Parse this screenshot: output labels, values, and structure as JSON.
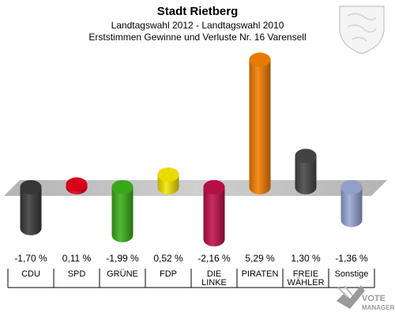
{
  "header": {
    "title": "Stadt Rietberg",
    "subtitle1": "Landtagswahl 2012 - Landtagswahl 2010",
    "subtitle2": "Erststimmen Gewinne und Verluste Nr. 16 Varensell"
  },
  "chart_data": {
    "type": "bar",
    "categories": [
      [
        "CDU"
      ],
      [
        "SPD"
      ],
      [
        "GRÜNE"
      ],
      [
        "FDP"
      ],
      [
        "DIE",
        "LINKE"
      ],
      [
        "PIRATEN"
      ],
      [
        "FREIE",
        "WÄHLER"
      ],
      [
        "Sonstige"
      ]
    ],
    "values": [
      -1.7,
      0.11,
      -1.99,
      0.52,
      -2.16,
      5.29,
      1.3,
      -1.36
    ],
    "value_labels": [
      "-1,70 %",
      "0,11 %",
      "-1,99 %",
      "0,52 %",
      "-2,16 %",
      "5,29 %",
      "1,30 %",
      "-1,36 %"
    ],
    "colors": [
      "#3a3a3a",
      "#e2001a",
      "#3cb01a",
      "#f5e600",
      "#c0104a",
      "#f57f00",
      "#464646",
      "#98a8d6"
    ],
    "baseline": 0
  },
  "branding": {
    "logo_line1": "VOTE",
    "logo_line2": "MANAGER"
  }
}
